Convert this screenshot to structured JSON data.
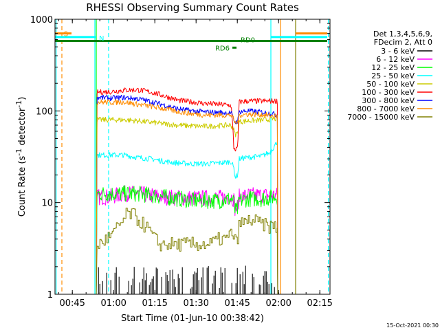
{
  "chart_data": {
    "type": "line",
    "title": "RHESSI Observing Summary Count Rates",
    "xlabel": "Start Time (01-Jun-10 00:38:42)",
    "ylabel_main": "Count Rate (s",
    "ylabel_sup1": "-1",
    "ylabel_mid": " detector",
    "ylabel_sup2": "-1",
    "ylabel_end": ")",
    "x_unit": "minutes after 00:38:42",
    "xlim": [
      0,
      100
    ],
    "ylim": [
      1,
      1000
    ],
    "yscale": "log",
    "x_ticks": [
      {
        "label": "00:45",
        "x": 6.3
      },
      {
        "label": "01:00",
        "x": 21.3
      },
      {
        "label": "01:15",
        "x": 36.3
      },
      {
        "label": "01:30",
        "x": 51.3
      },
      {
        "label": "01:45",
        "x": 66.3
      },
      {
        "label": "02:00",
        "x": 81.3
      },
      {
        "label": "02:15",
        "x": 96.3
      }
    ],
    "y_ticks": [
      {
        "label": "1",
        "y": 1
      },
      {
        "label": "10",
        "y": 10
      },
      {
        "label": "100",
        "y": 100
      },
      {
        "label": "1000",
        "y": 1000
      }
    ],
    "legend_header": [
      "Det 1,3,4,5,6,9,",
      "FDecim 2, Att 0"
    ],
    "legend_placement": "right",
    "series": [
      {
        "name": "3 - 6 keV",
        "color": "#000000",
        "kind": "spiky",
        "x": [
          15,
          24,
          34,
          44,
          54,
          64,
          68,
          70,
          74,
          78,
          81
        ],
        "y": [
          1,
          1,
          1,
          1,
          1,
          1,
          1,
          1,
          1,
          1,
          1
        ]
      },
      {
        "name": "6 - 12 keV",
        "color": "#ff00ff",
        "x": [
          15,
          16,
          20,
          25,
          30,
          35,
          40,
          45,
          50,
          55,
          60,
          64,
          65,
          65.5,
          66.5,
          67,
          70,
          75,
          80,
          81
        ],
        "y": [
          11.5,
          11.5,
          11.5,
          12.5,
          12.5,
          12,
          11.5,
          11.3,
          11.2,
          11.2,
          11.3,
          11.5,
          11,
          8.5,
          9,
          11.5,
          12,
          12,
          12,
          12
        ]
      },
      {
        "name": "12 - 25 keV",
        "color": "#00ff00",
        "x": [
          15,
          16,
          20,
          25,
          30,
          35,
          40,
          45,
          50,
          55,
          60,
          64,
          65,
          65.5,
          66.5,
          67,
          70,
          75,
          80,
          81
        ],
        "y": [
          12.5,
          12.5,
          12.5,
          12.5,
          12.5,
          12,
          11.5,
          11,
          10.5,
          10.5,
          10.5,
          11,
          10,
          8,
          8.5,
          10.5,
          11,
          11,
          11.5,
          11.5
        ]
      },
      {
        "name": "25 - 50 keV",
        "color": "#00ffff",
        "x": [
          15,
          16,
          20,
          25,
          30,
          35,
          40,
          45,
          50,
          55,
          60,
          64,
          65,
          65.5,
          66.5,
          67,
          70,
          75,
          78,
          80,
          81
        ],
        "y": [
          33,
          33,
          33,
          33,
          31,
          30,
          28,
          27,
          26.5,
          26.5,
          27,
          28,
          24,
          19,
          20,
          30,
          31,
          32,
          35,
          42,
          48
        ]
      },
      {
        "name": "50 - 100 keV",
        "color": "#cccc00",
        "x": [
          15,
          16,
          20,
          25,
          30,
          35,
          40,
          45,
          50,
          55,
          60,
          64,
          65,
          65.5,
          66.5,
          67,
          70,
          75,
          80,
          81
        ],
        "y": [
          80,
          80,
          80,
          80,
          78,
          75,
          72,
          70,
          68.5,
          68,
          69,
          70,
          62,
          55,
          58,
          76,
          78,
          79,
          82,
          82
        ]
      },
      {
        "name": "100 - 300 keV",
        "color": "#ff0000",
        "x": [
          15,
          16,
          20,
          25,
          30,
          35,
          40,
          45,
          50,
          55,
          60,
          64,
          65,
          65.5,
          66.5,
          67,
          70,
          75,
          80,
          81
        ],
        "y": [
          160,
          160,
          162,
          168,
          170,
          160,
          145,
          130,
          125,
          120,
          118,
          115,
          40,
          38,
          39,
          125,
          128,
          128,
          128,
          128
        ]
      },
      {
        "name": "300 - 800 keV",
        "color": "#0000ff",
        "x": [
          15,
          16,
          20,
          25,
          30,
          35,
          40,
          45,
          50,
          55,
          60,
          64,
          65,
          65.5,
          66.5,
          67,
          70,
          75,
          80,
          81
        ],
        "y": [
          140,
          140,
          138,
          140,
          136,
          126,
          115,
          105,
          100,
          97,
          96,
          95,
          80,
          75,
          78,
          98,
          100,
          97,
          92,
          90
        ]
      },
      {
        "name": "800 - 7000 keV",
        "color": "#ff8c00",
        "x": [
          15,
          16,
          20,
          25,
          30,
          35,
          40,
          45,
          50,
          55,
          60,
          64,
          65,
          65.5,
          66.5,
          67,
          70,
          75,
          80,
          81
        ],
        "y": [
          125,
          125,
          124,
          125,
          118,
          112,
          105,
          98,
          93,
          90,
          90,
          90,
          80,
          73,
          76,
          90,
          92,
          91,
          88,
          87
        ]
      },
      {
        "name": "7000 - 15000 keV",
        "color": "#808000",
        "kind": "step",
        "x": [
          15,
          16,
          21,
          23,
          25,
          26,
          28,
          30,
          34,
          36,
          38,
          40,
          43,
          46,
          52,
          56,
          60,
          63,
          64,
          65,
          66,
          67,
          69,
          71,
          74,
          77,
          80,
          81
        ],
        "y": [
          3.5,
          3.5,
          4.5,
          5.5,
          6.5,
          7.5,
          7.5,
          6.5,
          5,
          4,
          3.5,
          3.5,
          3.5,
          3.5,
          3.5,
          3.5,
          4,
          4,
          5,
          4,
          3.5,
          6,
          6,
          6.5,
          6,
          5.5,
          5.5,
          5
        ]
      }
    ],
    "bands": [
      {
        "label": "S",
        "color": "#ff8c00",
        "y": 700,
        "segments": [
          [
            0,
            6
          ],
          [
            87.5,
            99
          ]
        ]
      },
      {
        "label": "N",
        "color": "#00ffff",
        "y": 640,
        "segments": [
          [
            0,
            15
          ],
          [
            78.5,
            99
          ]
        ]
      },
      {
        "label": "RD0",
        "color": "#008000",
        "y": 580,
        "segments": [
          [
            0,
            99
          ]
        ]
      },
      {
        "label": "RD6",
        "color": "#008000",
        "y": 490,
        "segments": [
          [
            64.5,
            66
          ]
        ]
      }
    ],
    "vlines": [
      {
        "x": 0.4,
        "color": "#00ffff",
        "style": "solid"
      },
      {
        "x": 2.5,
        "color": "#ff8c00",
        "style": "dash"
      },
      {
        "x": 14.5,
        "color": "#00ffff",
        "style": "solid"
      },
      {
        "x": 15,
        "color": "#00ff00",
        "style": "solid"
      },
      {
        "x": 19.5,
        "color": "#00ffff",
        "style": "dash"
      },
      {
        "x": 78.5,
        "color": "#00ffff",
        "style": "solid"
      },
      {
        "x": 82,
        "color": "#ff8c00",
        "style": "solid"
      },
      {
        "x": 87.5,
        "color": "#808000",
        "style": "solid"
      },
      {
        "x": 99.4,
        "color": "#00ffff",
        "style": "dash"
      }
    ],
    "grid": false,
    "timestamp": "15-Oct-2021 00:30"
  }
}
